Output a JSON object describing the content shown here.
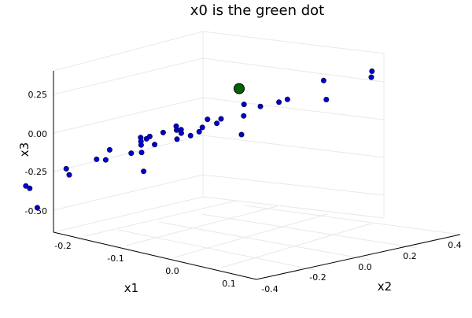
{
  "chart_data": {
    "type": "scatter3d",
    "title": "x0 is the green dot",
    "xlabel": "x1",
    "ylabel": "x2",
    "zlabel": "x3",
    "xlim": [
      -0.22,
      0.12
    ],
    "ylim": [
      -0.42,
      0.45
    ],
    "zlim": [
      -0.65,
      0.4
    ],
    "xticks": [
      "-0.2",
      "-0.1",
      "0.0",
      "0.1"
    ],
    "yticks": [
      "-0.4",
      "-0.2",
      "0.0",
      "0.2",
      "0.4"
    ],
    "zticks": [
      "0.25",
      "0.00",
      "-0.25",
      "-0.50"
    ],
    "grid": true,
    "series": [
      {
        "marker_color": "#0000cc",
        "description": "spiral of points converging to the origin",
        "points_x": [
          -0.2,
          -0.18,
          -0.14,
          -0.08,
          -0.01,
          0.05,
          0.09,
          0.1,
          0.08,
          0.04,
          -0.02,
          -0.07,
          -0.1,
          -0.11,
          -0.09,
          -0.05,
          0.0,
          0.04,
          0.06,
          0.06,
          0.04,
          0.01,
          -0.03,
          -0.05,
          -0.06,
          -0.05,
          -0.03,
          0.0,
          0.02,
          0.03,
          0.03,
          0.02,
          0.0,
          -0.02,
          -0.03,
          -0.03,
          -0.02,
          -0.01,
          0.0,
          0.01
        ],
        "points_y": [
          -0.3,
          -0.12,
          0.08,
          0.24,
          0.36,
          0.4,
          0.36,
          0.24,
          0.08,
          -0.1,
          -0.22,
          -0.26,
          -0.22,
          -0.12,
          0.0,
          0.12,
          0.2,
          0.22,
          0.18,
          0.1,
          0.0,
          -0.08,
          -0.12,
          -0.12,
          -0.08,
          -0.02,
          0.04,
          0.08,
          0.09,
          0.07,
          0.03,
          -0.01,
          -0.04,
          -0.05,
          -0.04,
          -0.02,
          0.0,
          0.02,
          0.02,
          0.01
        ],
        "points_z": [
          -0.6,
          -0.52,
          -0.38,
          -0.2,
          0.0,
          0.16,
          0.25,
          0.27,
          0.2,
          0.06,
          -0.1,
          -0.22,
          -0.28,
          -0.26,
          -0.18,
          -0.06,
          0.06,
          0.12,
          0.14,
          0.1,
          0.02,
          -0.06,
          -0.11,
          -0.12,
          -0.09,
          -0.04,
          0.01,
          0.05,
          0.06,
          0.05,
          0.02,
          -0.01,
          -0.04,
          -0.05,
          -0.04,
          -0.02,
          0.0,
          0.01,
          0.02,
          0.01
        ]
      },
      {
        "marker_color": "#006400",
        "description": "x0 starting point",
        "points_x": [
          0.05
        ],
        "points_y": [
          0.1
        ],
        "points_z": [
          0.27
        ]
      }
    ]
  }
}
